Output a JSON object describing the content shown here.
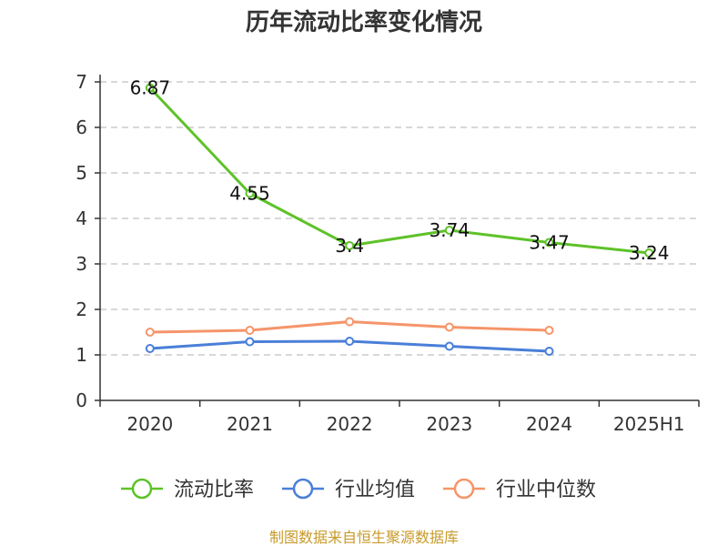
{
  "chart_data": {
    "type": "line",
    "title": "历年流动比率变化情况",
    "categories": [
      "2020",
      "2021",
      "2022",
      "2023",
      "2024",
      "2025H1"
    ],
    "ylim": [
      0,
      7
    ],
    "yticks": [
      0,
      1,
      2,
      3,
      4,
      5,
      6,
      7
    ],
    "grid": true,
    "legend_position": "bottom",
    "series": [
      {
        "name": "流动比率",
        "color": "#5ec229",
        "values": [
          6.87,
          4.55,
          3.4,
          3.74,
          3.47,
          3.24
        ],
        "labels": [
          "6.87",
          "4.55",
          "3.4",
          "3.74",
          "3.47",
          "3.24"
        ]
      },
      {
        "name": "行业均值",
        "color": "#4a7fd8",
        "values": [
          1.14,
          1.29,
          1.3,
          1.19,
          1.08,
          null
        ]
      },
      {
        "name": "行业中位数",
        "color": "#f5956a",
        "values": [
          1.5,
          1.54,
          1.73,
          1.61,
          1.54,
          null
        ]
      }
    ],
    "source": "制图数据来自恒生聚源数据库"
  }
}
